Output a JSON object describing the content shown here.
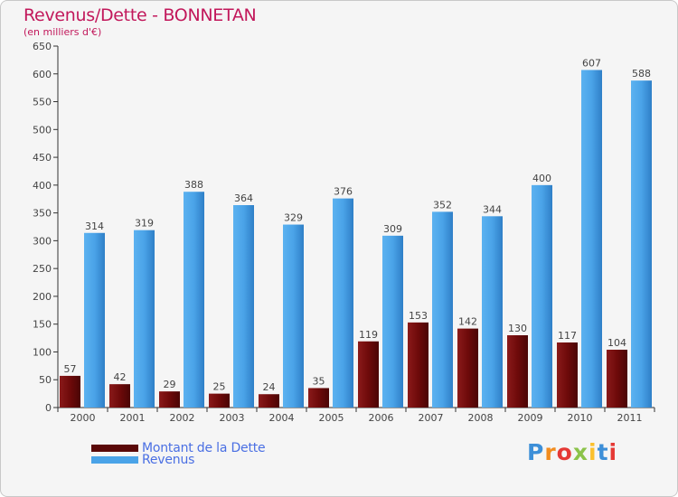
{
  "chart_data": {
    "type": "bar",
    "title": "Revenus/Dette - BONNETAN",
    "subtitle": "(en milliers d'€)",
    "xlabel": "",
    "ylabel": "",
    "ylim": [
      0,
      650
    ],
    "yticks": [
      0,
      50,
      100,
      150,
      200,
      250,
      300,
      350,
      400,
      450,
      500,
      550,
      600,
      650
    ],
    "grid": false,
    "legend_position": "bottom-left",
    "categories": [
      "2000",
      "2001",
      "2002",
      "2003",
      "2004",
      "2005",
      "2006",
      "2007",
      "2008",
      "2009",
      "2010",
      "2011"
    ],
    "series": [
      {
        "name": "Montant de la Dette",
        "color": "#7a0d0d",
        "values": [
          57,
          42,
          29,
          25,
          24,
          35,
          119,
          153,
          142,
          130,
          117,
          104
        ]
      },
      {
        "name": "Revenus",
        "color": "#4aa3e8",
        "values": [
          314,
          319,
          388,
          364,
          329,
          376,
          309,
          352,
          344,
          400,
          607,
          588
        ]
      }
    ]
  },
  "legend": {
    "dette_label": "Montant de la Dette",
    "revenus_label": "Revenus"
  },
  "logo": {
    "letters": [
      "P",
      "r",
      "o",
      "x",
      "i",
      "t",
      "i"
    ],
    "colors": [
      "#3d8fd8",
      "#f28c1e",
      "#e53935",
      "#8bc34a",
      "#fbc02d",
      "#3d8fd8",
      "#e53935"
    ]
  }
}
